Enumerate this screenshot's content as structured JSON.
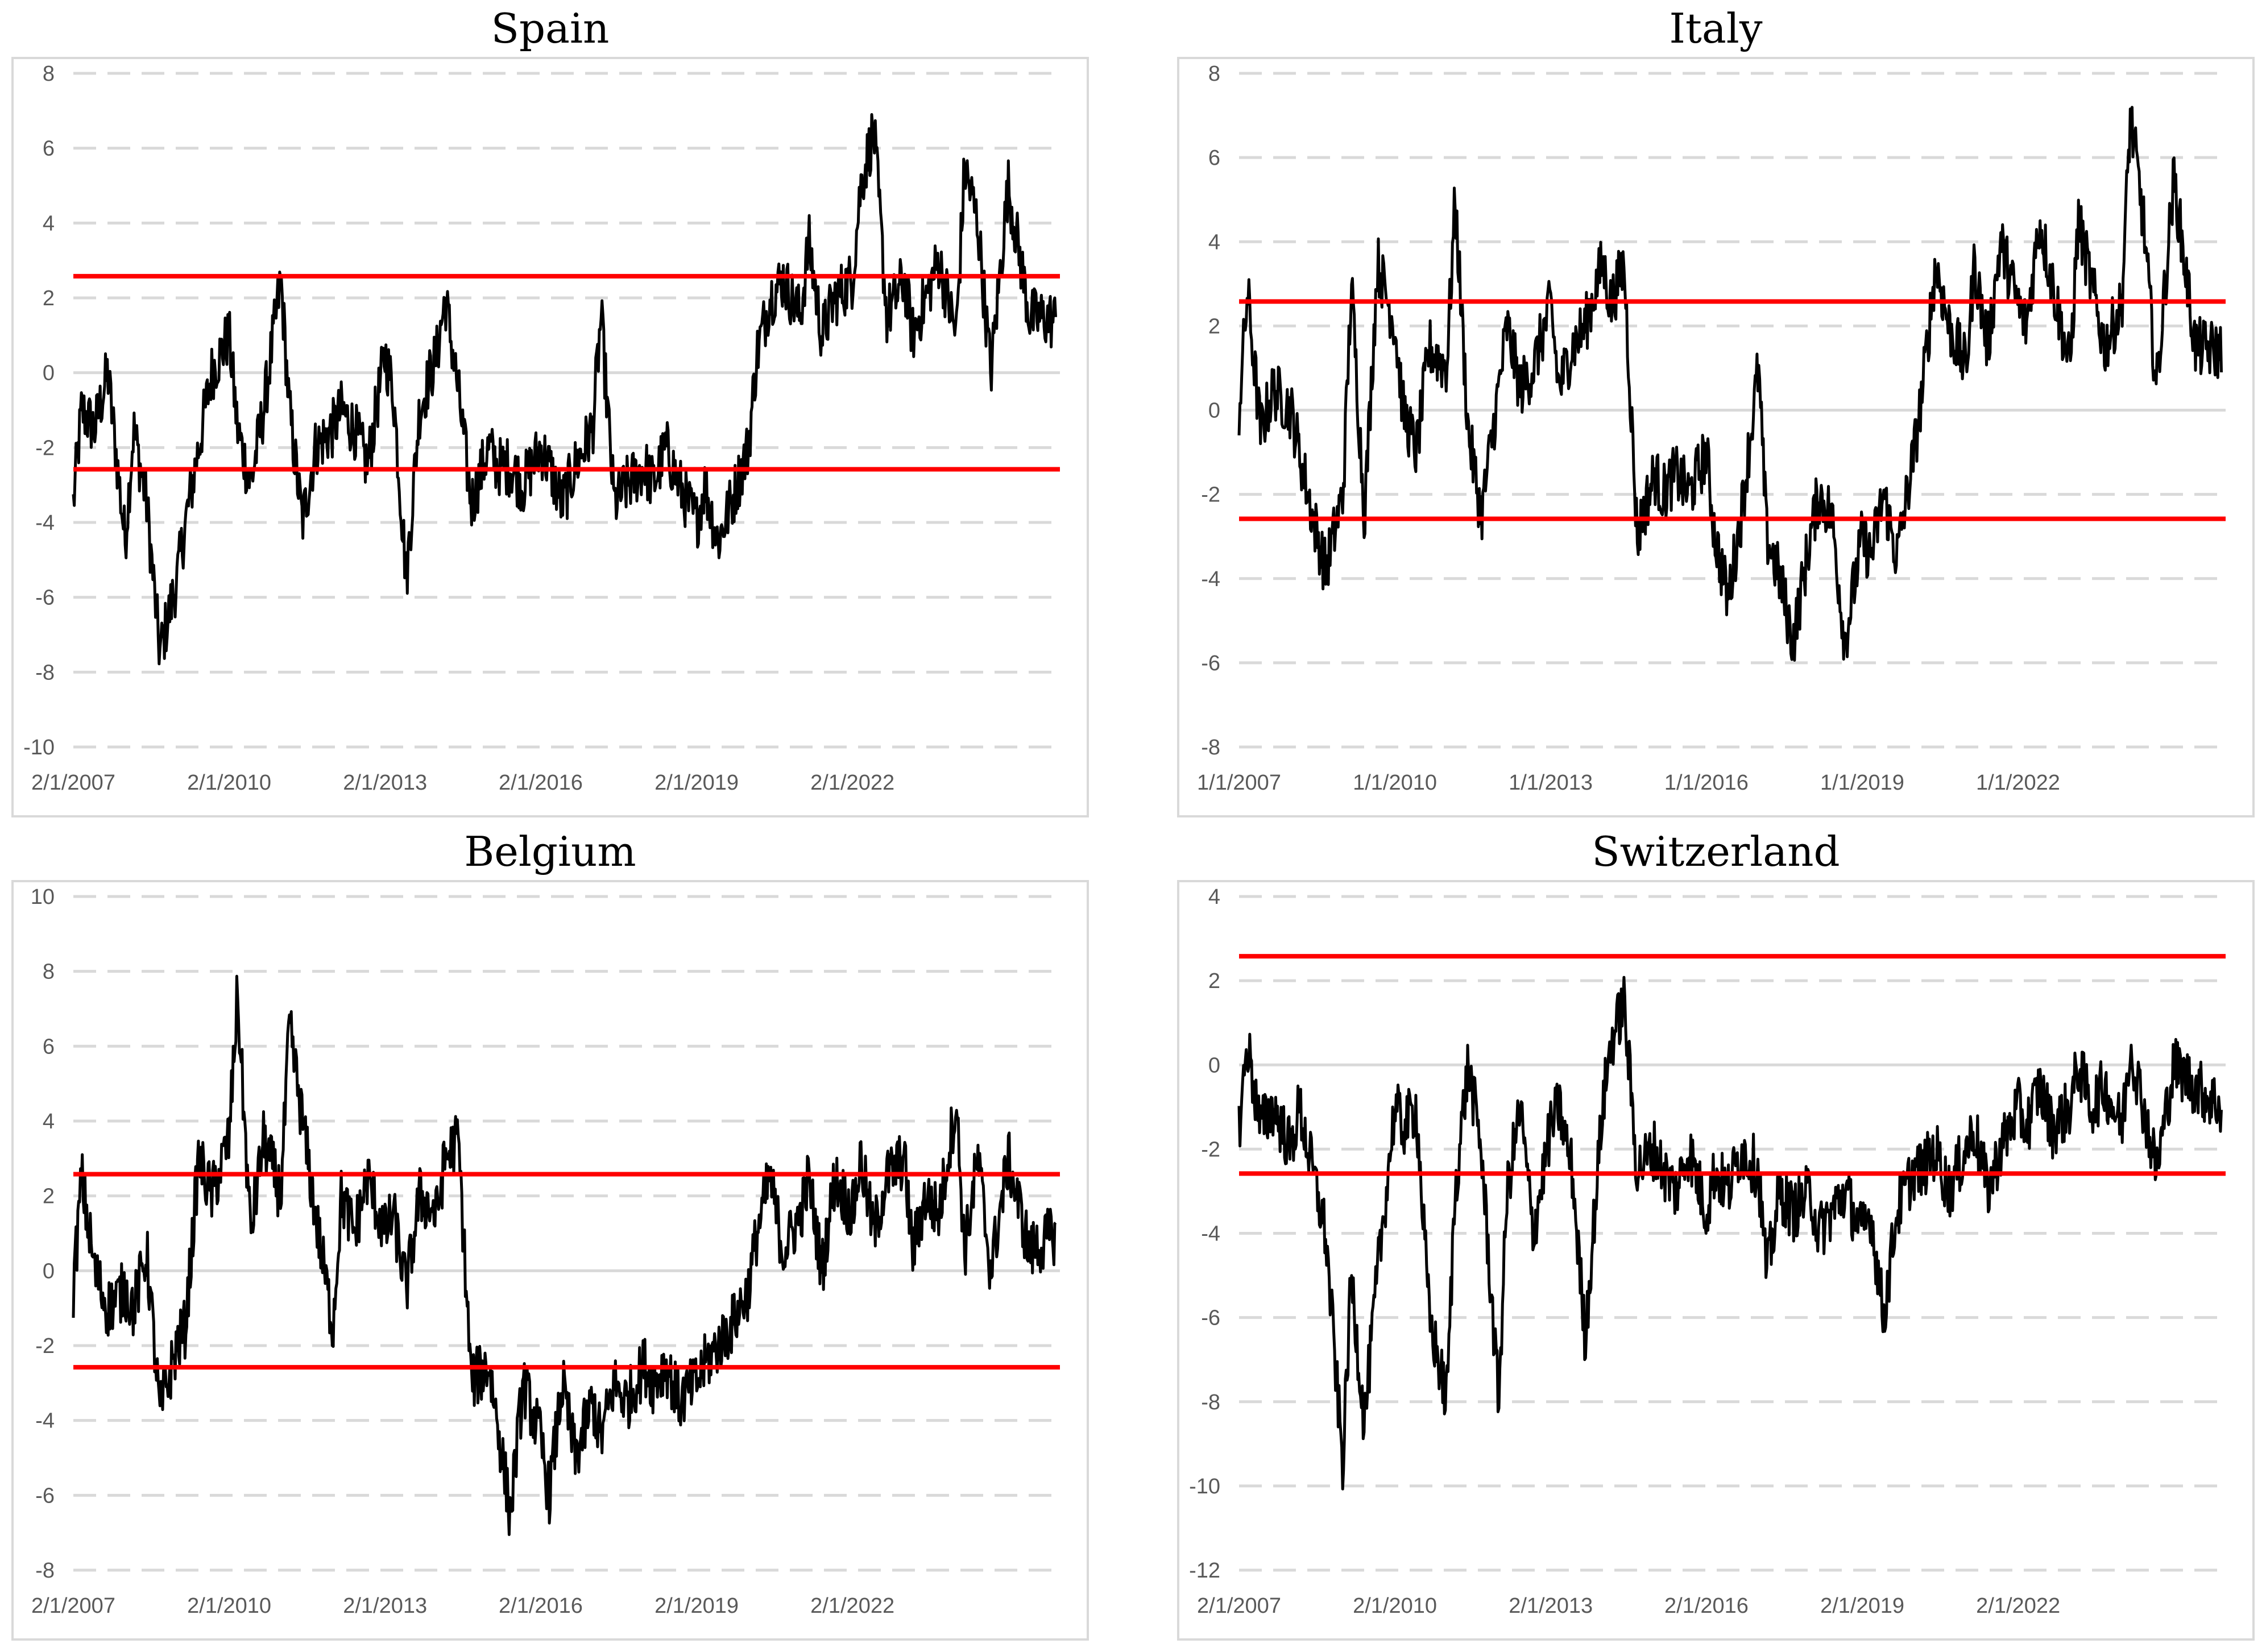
{
  "chart_data": [
    {
      "type": "line",
      "title": "Spain",
      "xlabel": "",
      "ylabel": "",
      "ylim": [
        -10,
        8
      ],
      "yticks": [
        8,
        6,
        4,
        2,
        0,
        -2,
        -4,
        -6,
        -8,
        -10
      ],
      "xlim": [
        "2007-01-02",
        "2025-12-31"
      ],
      "xticks": [
        {
          "date": "2007-01-02",
          "label": "2/1/2007"
        },
        {
          "date": "2010-01-02",
          "label": "2/1/2010"
        },
        {
          "date": "2013-01-02",
          "label": "2/1/2013"
        },
        {
          "date": "2016-01-02",
          "label": "2/1/2016"
        },
        {
          "date": "2019-01-02",
          "label": "2/1/2019"
        },
        {
          "date": "2022-01-02",
          "label": "2/1/2022"
        }
      ],
      "grid": true,
      "thresholds": [
        2.58,
        -2.58
      ],
      "colors": {
        "series": "#000000",
        "threshold": "#ff0000",
        "grid": "#d9d9d9"
      },
      "series": [
        {
          "x": [
            "2007-01-02",
            "2007-03-01",
            "2007-06-01",
            "2007-09-01",
            "2008-01-01",
            "2008-03-01",
            "2008-06-01",
            "2008-09-01",
            "2009-01-01",
            "2009-03-01",
            "2009-06-01",
            "2009-09-01",
            "2010-01-01",
            "2010-03-01",
            "2010-06-01",
            "2010-09-01",
            "2011-01-01",
            "2011-03-01",
            "2011-06-01",
            "2011-09-01",
            "2012-01-01",
            "2012-03-01",
            "2012-06-01",
            "2012-09-01",
            "2013-01-01",
            "2013-03-01",
            "2013-06-01",
            "2013-09-01",
            "2014-01-01",
            "2014-03-01",
            "2014-06-01",
            "2014-09-01",
            "2015-01-01",
            "2015-03-01",
            "2015-06-01",
            "2015-09-01",
            "2016-01-01",
            "2016-03-01",
            "2016-06-01",
            "2016-09-01",
            "2017-01-01",
            "2017-03-01",
            "2017-06-01",
            "2017-09-01",
            "2018-01-01",
            "2018-03-01",
            "2018-06-01",
            "2018-09-01",
            "2019-01-01",
            "2019-03-01",
            "2019-06-01",
            "2019-09-01",
            "2020-01-01",
            "2020-03-01",
            "2020-06-01",
            "2020-09-01",
            "2021-01-01",
            "2021-03-01",
            "2021-06-01",
            "2021-09-01",
            "2022-01-01",
            "2022-03-01",
            "2022-06-01",
            "2022-09-01",
            "2023-01-01",
            "2023-03-01",
            "2023-06-01",
            "2023-09-01",
            "2024-01-01",
            "2024-03-01",
            "2024-06-01",
            "2024-09-01",
            "2025-01-01",
            "2025-06-01",
            "2025-12-01"
          ],
          "values": [
            -3.5,
            -1.0,
            -1.5,
            0.0,
            -4.5,
            -1.5,
            -3.5,
            -7.5,
            -5.5,
            -4.0,
            -2.0,
            0.0,
            1.0,
            -1.5,
            -3.0,
            -1.0,
            2.5,
            -1.0,
            -4.0,
            -2.0,
            -1.5,
            -1.0,
            -1.5,
            -2.5,
            0.5,
            -0.5,
            -5.5,
            -1.0,
            0.5,
            2.0,
            -0.5,
            -3.5,
            -2.0,
            -2.5,
            -2.5,
            -3.0,
            -2.0,
            -2.5,
            -3.5,
            -2.5,
            -1.5,
            1.5,
            -3.5,
            -3.0,
            -2.5,
            -3.0,
            -2.0,
            -3.0,
            -4.0,
            -3.0,
            -4.5,
            -3.5,
            -2.0,
            0.5,
            2.0,
            2.5,
            1.5,
            3.5,
            1.0,
            2.0,
            2.5,
            5.0,
            6.5,
            1.5,
            2.5,
            1.0,
            2.0,
            3.0,
            1.0,
            5.5,
            4.0,
            0.0,
            5.0,
            1.5,
            1.4
          ]
        }
      ]
    },
    {
      "type": "line",
      "title": "Italy",
      "xlabel": "",
      "ylabel": "",
      "ylim": [
        -8,
        8
      ],
      "yticks": [
        8,
        6,
        4,
        2,
        0,
        -2,
        -4,
        -6,
        -8
      ],
      "xlim": [
        "2007-01-01",
        "2025-12-31"
      ],
      "xticks": [
        {
          "date": "2007-01-01",
          "label": "1/1/2007"
        },
        {
          "date": "2010-01-01",
          "label": "1/1/2010"
        },
        {
          "date": "2013-01-01",
          "label": "1/1/2013"
        },
        {
          "date": "2016-01-01",
          "label": "1/1/2016"
        },
        {
          "date": "2019-01-01",
          "label": "1/1/2019"
        },
        {
          "date": "2022-01-01",
          "label": "1/1/2022"
        }
      ],
      "grid": true,
      "thresholds": [
        2.58,
        -2.58
      ],
      "colors": {
        "series": "#000000",
        "threshold": "#ff0000",
        "grid": "#d9d9d9"
      },
      "series": [
        {
          "x": [
            "2007-01-01",
            "2007-03-01",
            "2007-06-01",
            "2007-09-01",
            "2008-01-01",
            "2008-03-01",
            "2008-06-01",
            "2008-09-01",
            "2009-01-01",
            "2009-03-01",
            "2009-06-01",
            "2009-09-01",
            "2010-01-01",
            "2010-03-01",
            "2010-06-01",
            "2010-09-01",
            "2011-01-01",
            "2011-03-01",
            "2011-06-01",
            "2011-09-01",
            "2012-01-01",
            "2012-03-01",
            "2012-06-01",
            "2012-09-01",
            "2013-01-01",
            "2013-03-01",
            "2013-06-01",
            "2013-09-01",
            "2014-01-01",
            "2014-03-01",
            "2014-06-01",
            "2014-09-01",
            "2015-01-01",
            "2015-03-01",
            "2015-06-01",
            "2015-09-01",
            "2016-01-01",
            "2016-03-01",
            "2016-06-01",
            "2016-09-01",
            "2017-01-01",
            "2017-03-01",
            "2017-06-01",
            "2017-09-01",
            "2018-01-01",
            "2018-03-01",
            "2018-06-01",
            "2018-09-01",
            "2019-01-01",
            "2019-03-01",
            "2019-06-01",
            "2019-09-01",
            "2020-01-01",
            "2020-03-01",
            "2020-06-01",
            "2020-09-01",
            "2021-01-01",
            "2021-03-01",
            "2021-06-01",
            "2021-09-01",
            "2022-01-01",
            "2022-03-01",
            "2022-06-01",
            "2022-09-01",
            "2023-01-01",
            "2023-03-01",
            "2023-06-01",
            "2023-09-01",
            "2024-01-01",
            "2024-03-01",
            "2024-06-01",
            "2024-09-01",
            "2025-01-01",
            "2025-06-01",
            "2025-12-01"
          ],
          "values": [
            0.0,
            2.8,
            -0.5,
            0.5,
            0.0,
            -1.0,
            -2.5,
            -3.8,
            -2.0,
            3.0,
            -2.5,
            3.5,
            2.0,
            0.0,
            -1.0,
            1.5,
            1.0,
            5.0,
            -0.5,
            -2.5,
            0.5,
            2.0,
            0.5,
            1.0,
            2.5,
            0.5,
            1.5,
            2.0,
            3.5,
            2.5,
            3.5,
            -3.0,
            -1.5,
            -2.0,
            -1.5,
            -2.0,
            -1.0,
            -3.0,
            -4.5,
            -2.5,
            1.0,
            -3.0,
            -4.0,
            -5.5,
            -3.0,
            -2.0,
            -2.5,
            -5.5,
            -3.0,
            -3.5,
            -2.0,
            -3.5,
            -1.0,
            0.5,
            3.5,
            2.0,
            1.0,
            3.5,
            1.5,
            4.0,
            2.5,
            2.0,
            4.5,
            3.0,
            1.0,
            4.5,
            3.0,
            1.5,
            2.5,
            7.0,
            4.5,
            0.5,
            5.5,
            1.5,
            1.4
          ]
        }
      ]
    },
    {
      "type": "line",
      "title": "Belgium",
      "xlabel": "",
      "ylabel": "",
      "ylim": [
        -8,
        10
      ],
      "yticks": [
        10,
        8,
        6,
        4,
        2,
        0,
        -2,
        -4,
        -6,
        -8
      ],
      "xlim": [
        "2007-01-02",
        "2025-12-31"
      ],
      "xticks": [
        {
          "date": "2007-01-02",
          "label": "2/1/2007"
        },
        {
          "date": "2010-01-02",
          "label": "2/1/2010"
        },
        {
          "date": "2013-01-02",
          "label": "2/1/2013"
        },
        {
          "date": "2016-01-02",
          "label": "2/1/2016"
        },
        {
          "date": "2019-01-02",
          "label": "2/1/2019"
        },
        {
          "date": "2022-01-02",
          "label": "2/1/2022"
        }
      ],
      "grid": true,
      "thresholds": [
        2.58,
        -2.58
      ],
      "colors": {
        "series": "#000000",
        "threshold": "#ff0000",
        "grid": "#d9d9d9"
      },
      "series": [
        {
          "x": [
            "2007-01-02",
            "2007-03-01",
            "2007-06-01",
            "2007-09-01",
            "2008-01-01",
            "2008-03-01",
            "2008-06-01",
            "2008-09-01",
            "2009-01-01",
            "2009-03-01",
            "2009-06-01",
            "2009-09-01",
            "2010-01-01",
            "2010-03-01",
            "2010-06-01",
            "2010-09-01",
            "2011-01-01",
            "2011-03-01",
            "2011-06-01",
            "2011-09-01",
            "2012-01-01",
            "2012-03-01",
            "2012-06-01",
            "2012-09-01",
            "2013-01-01",
            "2013-03-01",
            "2013-06-01",
            "2013-09-01",
            "2014-01-01",
            "2014-03-01",
            "2014-06-01",
            "2014-09-01",
            "2015-01-01",
            "2015-03-01",
            "2015-06-01",
            "2015-09-01",
            "2016-01-01",
            "2016-03-01",
            "2016-06-01",
            "2016-09-01",
            "2017-01-01",
            "2017-03-01",
            "2017-06-01",
            "2017-09-01",
            "2018-01-01",
            "2018-03-01",
            "2018-06-01",
            "2018-09-01",
            "2019-01-01",
            "2019-03-01",
            "2019-06-01",
            "2019-09-01",
            "2020-01-01",
            "2020-03-01",
            "2020-06-01",
            "2020-09-01",
            "2021-01-01",
            "2021-03-01",
            "2021-06-01",
            "2021-09-01",
            "2022-01-01",
            "2022-03-01",
            "2022-06-01",
            "2022-09-01",
            "2023-01-01",
            "2023-03-01",
            "2023-06-01",
            "2023-09-01",
            "2024-01-01",
            "2024-03-01",
            "2024-06-01",
            "2024-09-01",
            "2025-01-01",
            "2025-06-01",
            "2025-12-01"
          ],
          "values": [
            -0.5,
            2.5,
            0.0,
            -1.0,
            -0.5,
            -1.0,
            0.5,
            -3.8,
            -2.0,
            -1.5,
            3.0,
            2.0,
            3.5,
            7.4,
            1.0,
            3.5,
            2.0,
            6.5,
            4.0,
            1.5,
            -1.5,
            2.0,
            1.0,
            2.5,
            1.0,
            1.5,
            -0.5,
            2.0,
            1.5,
            3.0,
            3.5,
            -3.0,
            -2.5,
            -4.0,
            -6.5,
            -3.0,
            -4.5,
            -6.0,
            -3.0,
            -5.0,
            -3.5,
            -4.5,
            -3.0,
            -3.5,
            -2.5,
            -3.0,
            -2.5,
            -3.5,
            -3.0,
            -2.5,
            -2.0,
            -1.5,
            -0.5,
            1.0,
            2.5,
            0.5,
            1.5,
            2.5,
            0.0,
            2.5,
            1.5,
            3.0,
            1.0,
            2.5,
            3.0,
            0.5,
            2.0,
            1.5,
            4.5,
            0.5,
            3.0,
            0.0,
            3.0,
            0.5,
            1.0
          ]
        }
      ]
    },
    {
      "type": "line",
      "title": "Switzerland",
      "xlabel": "",
      "ylabel": "",
      "ylim": [
        -12,
        4
      ],
      "yticks": [
        4,
        2,
        0,
        -2,
        -4,
        -6,
        -8,
        -10,
        -12
      ],
      "xlim": [
        "2007-01-02",
        "2025-12-31"
      ],
      "xticks": [
        {
          "date": "2007-01-02",
          "label": "2/1/2007"
        },
        {
          "date": "2010-01-02",
          "label": "2/1/2010"
        },
        {
          "date": "2013-01-02",
          "label": "2/1/2013"
        },
        {
          "date": "2016-01-02",
          "label": "2/1/2016"
        },
        {
          "date": "2019-01-02",
          "label": "2/1/2019"
        },
        {
          "date": "2022-01-02",
          "label": "2/1/2022"
        }
      ],
      "grid": true,
      "thresholds": [
        2.58,
        -2.58
      ],
      "colors": {
        "series": "#000000",
        "threshold": "#ff0000",
        "grid": "#d9d9d9"
      },
      "series": [
        {
          "x": [
            "2007-01-02",
            "2007-03-01",
            "2007-06-01",
            "2007-09-01",
            "2008-01-01",
            "2008-03-01",
            "2008-06-01",
            "2008-09-01",
            "2009-01-01",
            "2009-03-01",
            "2009-06-01",
            "2009-09-01",
            "2010-01-01",
            "2010-03-01",
            "2010-06-01",
            "2010-09-01",
            "2011-01-01",
            "2011-03-01",
            "2011-06-01",
            "2011-09-01",
            "2012-01-01",
            "2012-03-01",
            "2012-06-01",
            "2012-09-01",
            "2013-01-01",
            "2013-03-01",
            "2013-06-01",
            "2013-09-01",
            "2014-01-01",
            "2014-03-01",
            "2014-06-01",
            "2014-09-01",
            "2015-01-01",
            "2015-03-01",
            "2015-06-01",
            "2015-09-01",
            "2016-01-01",
            "2016-03-01",
            "2016-06-01",
            "2016-09-01",
            "2017-01-01",
            "2017-03-01",
            "2017-06-01",
            "2017-09-01",
            "2018-01-01",
            "2018-03-01",
            "2018-06-01",
            "2018-09-01",
            "2019-01-01",
            "2019-03-01",
            "2019-06-01",
            "2019-09-01",
            "2020-01-01",
            "2020-03-01",
            "2020-06-01",
            "2020-09-01",
            "2021-01-01",
            "2021-03-01",
            "2021-06-01",
            "2021-09-01",
            "2022-01-01",
            "2022-03-01",
            "2022-06-01",
            "2022-09-01",
            "2023-01-01",
            "2023-03-01",
            "2023-06-01",
            "2023-09-01",
            "2024-01-01",
            "2024-03-01",
            "2024-06-01",
            "2024-09-01",
            "2025-01-01",
            "2025-06-01",
            "2025-12-01"
          ],
          "values": [
            -1.5,
            0.5,
            -1.5,
            -1.0,
            -2.0,
            -1.0,
            -2.5,
            -4.0,
            -9.5,
            -5.0,
            -8.5,
            -5.0,
            -1.0,
            -1.5,
            -1.0,
            -6.0,
            -8.0,
            -3.0,
            0.0,
            -2.0,
            -8.0,
            -3.0,
            -1.0,
            -4.0,
            -1.5,
            -1.0,
            -2.5,
            -6.5,
            -1.0,
            0.5,
            1.5,
            -2.5,
            -2.0,
            -2.5,
            -3.0,
            -2.0,
            -3.5,
            -2.5,
            -3.0,
            -2.0,
            -2.5,
            -5.0,
            -3.0,
            -3.5,
            -3.0,
            -4.0,
            -3.5,
            -3.0,
            -4.0,
            -3.5,
            -6.0,
            -3.5,
            -2.5,
            -2.5,
            -2.0,
            -3.0,
            -2.0,
            -1.5,
            -3.0,
            -2.0,
            -1.0,
            -1.5,
            -0.5,
            -1.5,
            -1.0,
            0.0,
            -1.0,
            -0.5,
            -1.5,
            0.5,
            -1.0,
            -2.5,
            0.0,
            -0.5,
            -1.0
          ]
        }
      ]
    }
  ]
}
